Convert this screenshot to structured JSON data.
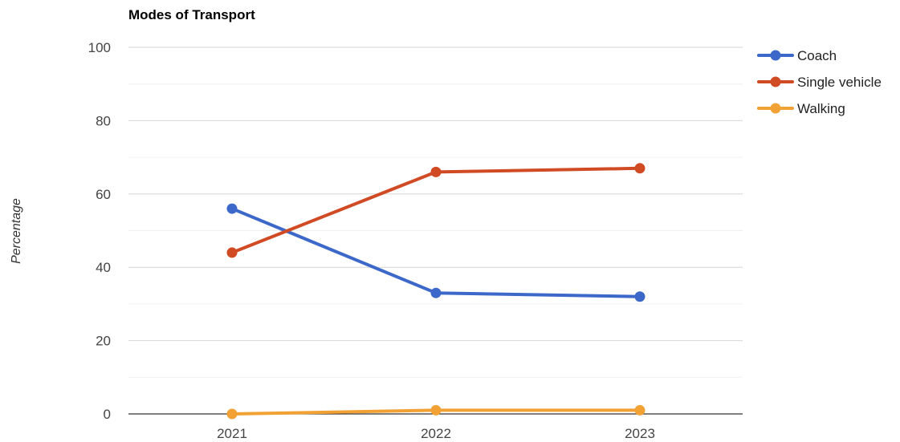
{
  "chart_data": {
    "type": "line",
    "title": "Modes of Transport",
    "xlabel": "",
    "ylabel": "Percentage",
    "categories": [
      "2021",
      "2022",
      "2023"
    ],
    "ylim": [
      0,
      100
    ],
    "yticks": [
      "0",
      "20",
      "40",
      "60",
      "80",
      "100"
    ],
    "ytick_values": [
      0,
      20,
      40,
      60,
      80,
      100
    ],
    "minor_gridlines": [
      10,
      30,
      50,
      70,
      90
    ],
    "grid": true,
    "legend_position": "right",
    "series": [
      {
        "name": "Coach",
        "color": "#3c68c9",
        "values": [
          56,
          33,
          32
        ]
      },
      {
        "name": "Single vehicle",
        "color": "#d04a24",
        "values": [
          44,
          66,
          67
        ]
      },
      {
        "name": "Walking",
        "color": "#f2a235",
        "values": [
          0,
          1,
          1
        ]
      }
    ]
  }
}
